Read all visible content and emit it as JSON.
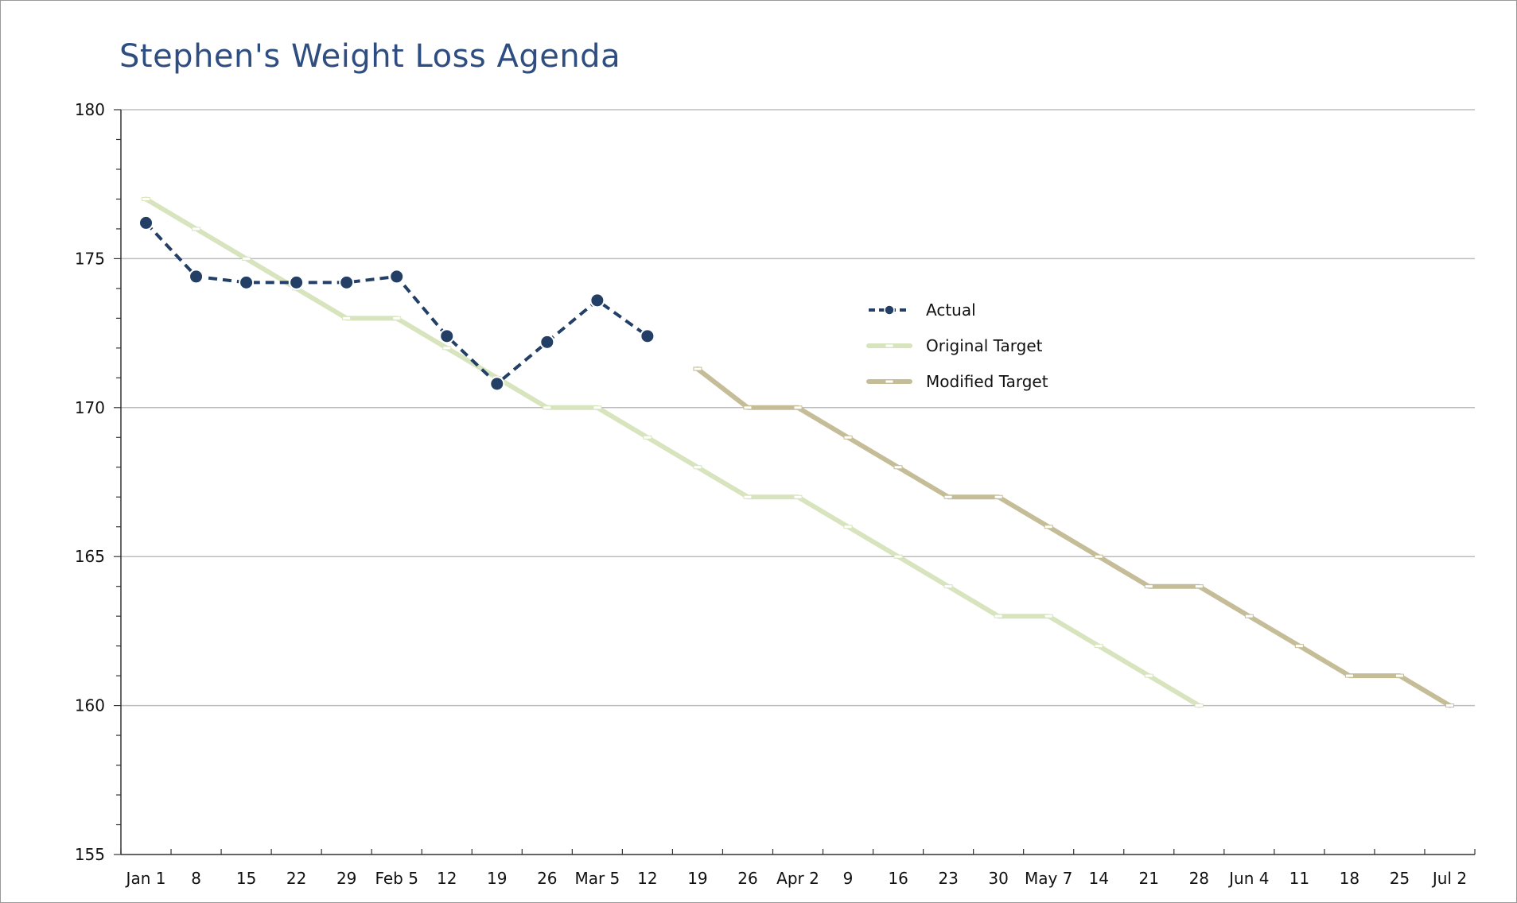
{
  "chart_data": {
    "type": "line",
    "title": "Stephen's Weight Loss Agenda",
    "xlabel": "",
    "ylabel": "",
    "ylim": [
      155,
      180
    ],
    "yticks": [
      155,
      160,
      165,
      170,
      175,
      180
    ],
    "y_minor_step": 1,
    "grid": true,
    "legend_position": "center-right",
    "categories": [
      "Jan 1",
      "8",
      "15",
      "22",
      "29",
      "Feb 5",
      "12",
      "19",
      "26",
      "Mar 5",
      "12",
      "19",
      "26",
      "Apr 2",
      "9",
      "16",
      "23",
      "30",
      "May 7",
      "14",
      "21",
      "28",
      "Jun 4",
      "11",
      "18",
      "25",
      "Jul 2"
    ],
    "series": [
      {
        "name": "Actual",
        "color": "#233f66",
        "style": "dashed-markers",
        "values": [
          176.2,
          174.4,
          174.2,
          174.2,
          174.2,
          174.4,
          172.4,
          170.8,
          172.2,
          173.6,
          172.4,
          null,
          null,
          null,
          null,
          null,
          null,
          null,
          null,
          null,
          null,
          null,
          null,
          null,
          null,
          null,
          null
        ]
      },
      {
        "name": "Original Target",
        "color": "#d7e4bd",
        "style": "solid",
        "values": [
          177,
          176,
          175,
          174,
          173,
          173,
          172,
          171,
          170,
          170,
          169,
          168,
          167,
          167,
          166,
          165,
          164,
          163,
          163,
          162,
          161,
          160,
          null,
          null,
          null,
          null,
          null
        ]
      },
      {
        "name": "Modified Target",
        "color": "#c4bd97",
        "style": "solid",
        "values": [
          null,
          null,
          null,
          null,
          null,
          null,
          null,
          null,
          null,
          null,
          null,
          171.3,
          170,
          170,
          169,
          168,
          167,
          167,
          166,
          165,
          164,
          164,
          163,
          162,
          161,
          161,
          160
        ]
      }
    ]
  }
}
